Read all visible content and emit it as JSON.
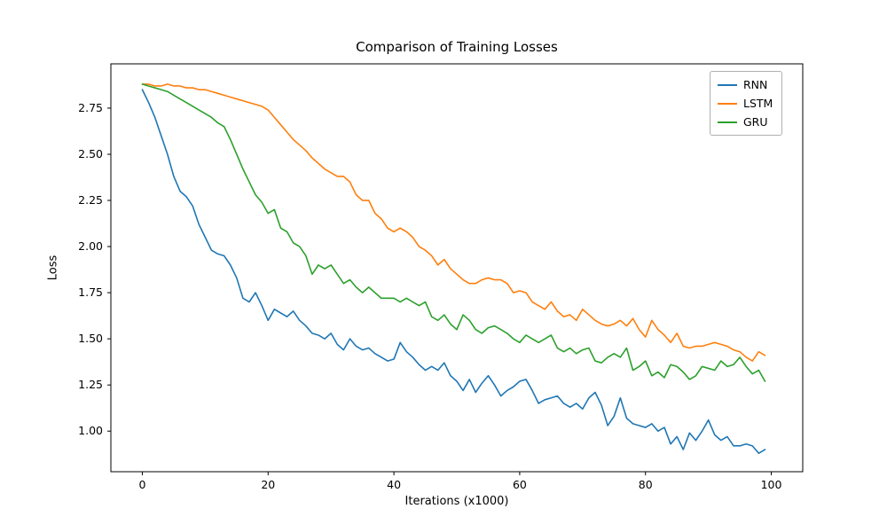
{
  "chart_data": {
    "type": "line",
    "title": "Comparison of Training Losses",
    "xlabel": "Iterations (x1000)",
    "ylabel": "Loss",
    "xlim": [
      -5,
      105
    ],
    "ylim": [
      0.78,
      2.99
    ],
    "x_ticks": [
      0,
      20,
      40,
      60,
      80,
      100
    ],
    "y_ticks": [
      1.0,
      1.25,
      1.5,
      1.75,
      2.0,
      2.25,
      2.5,
      2.75
    ],
    "grid": false,
    "legend_position": "upper right",
    "x": [
      0,
      1,
      2,
      3,
      4,
      5,
      6,
      7,
      8,
      9,
      10,
      11,
      12,
      13,
      14,
      15,
      16,
      17,
      18,
      19,
      20,
      21,
      22,
      23,
      24,
      25,
      26,
      27,
      28,
      29,
      30,
      31,
      32,
      33,
      34,
      35,
      36,
      37,
      38,
      39,
      40,
      41,
      42,
      43,
      44,
      45,
      46,
      47,
      48,
      49,
      50,
      51,
      52,
      53,
      54,
      55,
      56,
      57,
      58,
      59,
      60,
      61,
      62,
      63,
      64,
      65,
      66,
      67,
      68,
      69,
      70,
      71,
      72,
      73,
      74,
      75,
      76,
      77,
      78,
      79,
      80,
      81,
      82,
      83,
      84,
      85,
      86,
      87,
      88,
      89,
      90,
      91,
      92,
      93,
      94,
      95,
      96,
      97,
      98,
      99
    ],
    "series": [
      {
        "name": "RNN",
        "color": "#1f77b4",
        "values": [
          2.85,
          2.78,
          2.7,
          2.6,
          2.5,
          2.38,
          2.3,
          2.27,
          2.22,
          2.12,
          2.05,
          1.98,
          1.96,
          1.95,
          1.9,
          1.83,
          1.72,
          1.7,
          1.75,
          1.68,
          1.6,
          1.66,
          1.64,
          1.62,
          1.65,
          1.6,
          1.57,
          1.53,
          1.52,
          1.5,
          1.53,
          1.47,
          1.44,
          1.5,
          1.46,
          1.44,
          1.45,
          1.42,
          1.4,
          1.38,
          1.39,
          1.48,
          1.43,
          1.4,
          1.36,
          1.33,
          1.35,
          1.33,
          1.37,
          1.3,
          1.27,
          1.22,
          1.28,
          1.21,
          1.26,
          1.3,
          1.25,
          1.19,
          1.22,
          1.24,
          1.27,
          1.28,
          1.22,
          1.15,
          1.17,
          1.18,
          1.19,
          1.15,
          1.13,
          1.15,
          1.12,
          1.18,
          1.21,
          1.14,
          1.03,
          1.08,
          1.18,
          1.07,
          1.04,
          1.03,
          1.02,
          1.04,
          1.0,
          1.02,
          0.93,
          0.97,
          0.9,
          0.99,
          0.95,
          1.0,
          1.06,
          0.98,
          0.95,
          0.97,
          0.92,
          0.92,
          0.93,
          0.92,
          0.88,
          0.9
        ]
      },
      {
        "name": "LSTM",
        "color": "#ff7f0e",
        "values": [
          2.88,
          2.88,
          2.87,
          2.87,
          2.88,
          2.87,
          2.87,
          2.86,
          2.86,
          2.85,
          2.85,
          2.84,
          2.83,
          2.82,
          2.81,
          2.8,
          2.79,
          2.78,
          2.77,
          2.76,
          2.74,
          2.7,
          2.66,
          2.62,
          2.58,
          2.55,
          2.52,
          2.48,
          2.45,
          2.42,
          2.4,
          2.38,
          2.38,
          2.35,
          2.28,
          2.25,
          2.25,
          2.18,
          2.15,
          2.1,
          2.08,
          2.1,
          2.08,
          2.05,
          2.0,
          1.98,
          1.95,
          1.9,
          1.93,
          1.88,
          1.85,
          1.82,
          1.8,
          1.8,
          1.82,
          1.83,
          1.82,
          1.82,
          1.8,
          1.75,
          1.76,
          1.75,
          1.7,
          1.68,
          1.66,
          1.7,
          1.65,
          1.62,
          1.63,
          1.6,
          1.66,
          1.63,
          1.6,
          1.58,
          1.57,
          1.58,
          1.6,
          1.57,
          1.61,
          1.55,
          1.51,
          1.6,
          1.55,
          1.52,
          1.48,
          1.53,
          1.46,
          1.45,
          1.46,
          1.46,
          1.47,
          1.48,
          1.47,
          1.46,
          1.44,
          1.43,
          1.4,
          1.38,
          1.43,
          1.41
        ]
      },
      {
        "name": "GRU",
        "color": "#2ca02c",
        "values": [
          2.88,
          2.87,
          2.86,
          2.85,
          2.84,
          2.82,
          2.8,
          2.78,
          2.76,
          2.74,
          2.72,
          2.7,
          2.67,
          2.65,
          2.58,
          2.5,
          2.42,
          2.35,
          2.28,
          2.24,
          2.18,
          2.2,
          2.1,
          2.08,
          2.02,
          2.0,
          1.95,
          1.85,
          1.9,
          1.88,
          1.9,
          1.85,
          1.8,
          1.82,
          1.78,
          1.75,
          1.78,
          1.75,
          1.72,
          1.72,
          1.72,
          1.7,
          1.72,
          1.7,
          1.68,
          1.7,
          1.62,
          1.6,
          1.63,
          1.58,
          1.55,
          1.63,
          1.6,
          1.55,
          1.53,
          1.56,
          1.57,
          1.55,
          1.53,
          1.5,
          1.48,
          1.52,
          1.5,
          1.48,
          1.5,
          1.52,
          1.45,
          1.43,
          1.45,
          1.42,
          1.44,
          1.45,
          1.38,
          1.37,
          1.4,
          1.42,
          1.4,
          1.45,
          1.33,
          1.35,
          1.38,
          1.3,
          1.32,
          1.29,
          1.36,
          1.35,
          1.32,
          1.28,
          1.3,
          1.35,
          1.34,
          1.33,
          1.38,
          1.35,
          1.36,
          1.4,
          1.35,
          1.31,
          1.33,
          1.27
        ]
      }
    ]
  }
}
